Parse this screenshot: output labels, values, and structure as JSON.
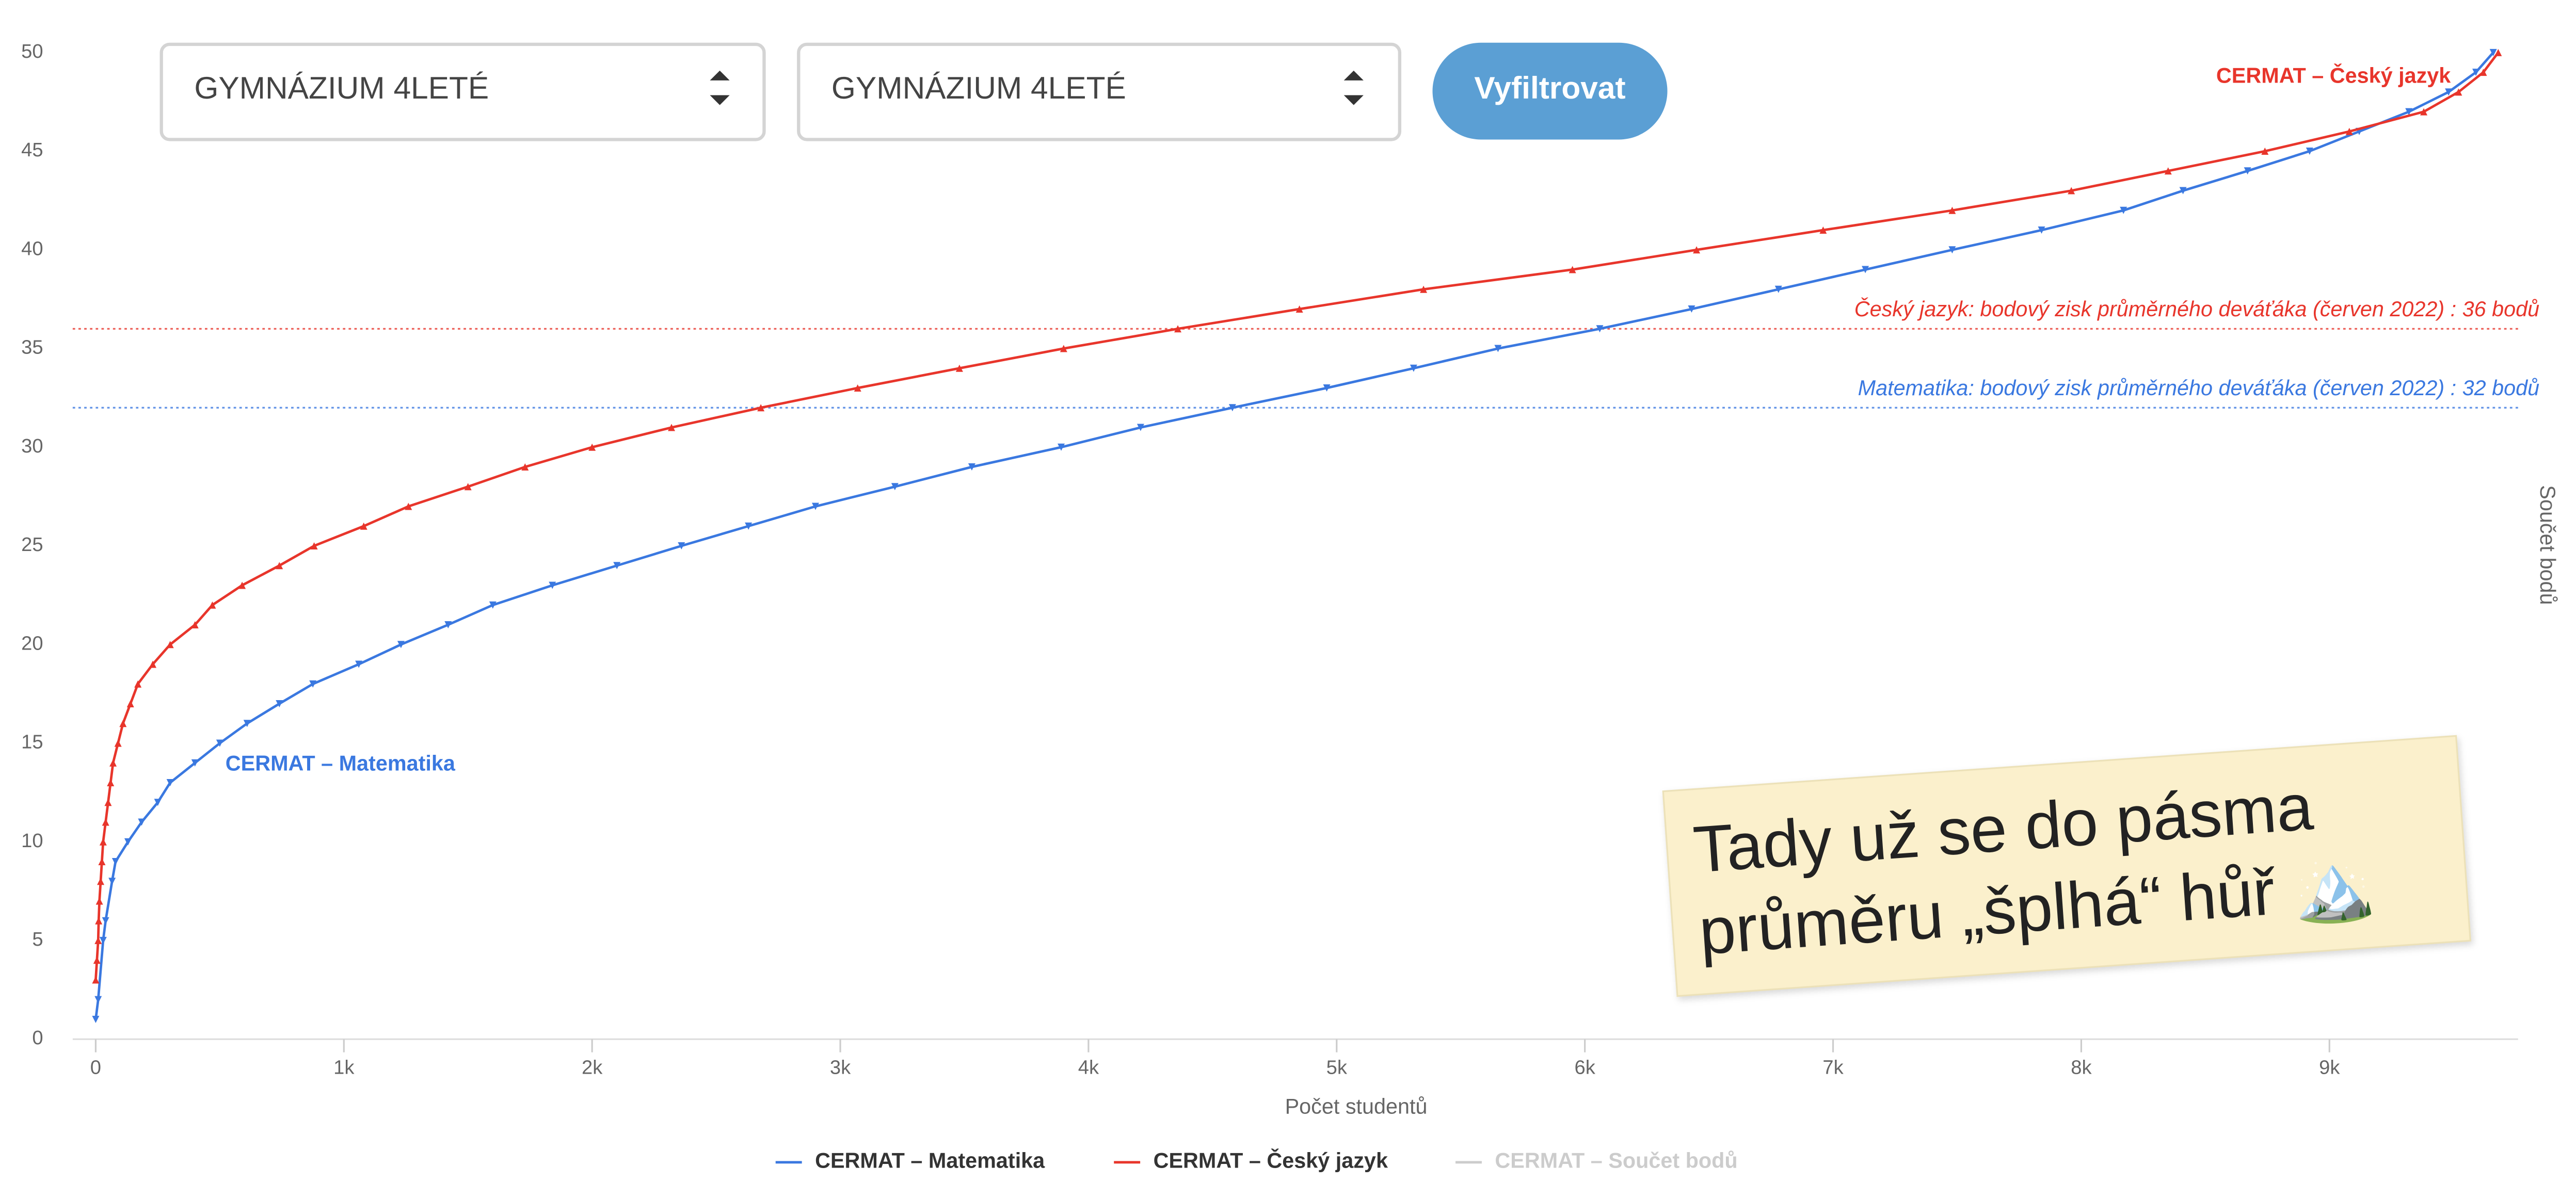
{
  "filters": {
    "select_1": "GYMNÁZIUM 4LETÉ",
    "select_2": "GYMNÁZIUM 4LETÉ",
    "button": "Vyfiltrovat"
  },
  "note": {
    "lines": [
      "Tady už se do pásma",
      "průměru „šplhá“ hůř 🏔️"
    ]
  },
  "chart_data": {
    "type": "line",
    "xlabel": "Počet studentů",
    "ylabel": "Součet bodů",
    "xlim": [
      0,
      9760
    ],
    "ylim": [
      0,
      50
    ],
    "xticks": [
      0,
      {
        "value": 1000,
        "label": "1k"
      },
      {
        "value": 2000,
        "label": "2k"
      },
      {
        "value": 3000,
        "label": "3k"
      },
      {
        "value": 4000,
        "label": "4k"
      },
      {
        "value": 5000,
        "label": "5k"
      },
      {
        "value": 6000,
        "label": "6k"
      },
      {
        "value": 7000,
        "label": "7k"
      },
      {
        "value": 8000,
        "label": "8k"
      },
      {
        "value": 9000,
        "label": "9k"
      }
    ],
    "yticks": [
      0,
      5,
      10,
      15,
      20,
      25,
      30,
      35,
      40,
      45,
      50
    ],
    "reference_lines": [
      {
        "value": 36,
        "color": "#e8352b",
        "label": "Český jazyk: bodový zisk průměrného deváťáka (červen 2022) : 36 bodů"
      },
      {
        "value": 32,
        "color": "#3a78e0",
        "label": "Matematika: bodový zisk průměrného deváťáka (červen 2022) : 32 bodů"
      }
    ],
    "annotations": [
      {
        "text": "CERMAT – Český jazyk",
        "color": "#e8352b"
      },
      {
        "text": "CERMAT – Matematika",
        "color": "#3a78e0"
      }
    ],
    "series": [
      {
        "name": "CERMAT – Matematika",
        "color": "#3a78e0",
        "marker": "down",
        "x": [
          0,
          10,
          30,
          40,
          66,
          80,
          130,
          185,
          250,
          300,
          400,
          500,
          610,
          740,
          875,
          1060,
          1230,
          1420,
          1600,
          1840,
          2100,
          2360,
          2630,
          2900,
          3220,
          3530,
          3890,
          4210,
          4580,
          4960,
          5310,
          5650,
          6060,
          6430,
          6780,
          7130,
          7480,
          7840,
          8170,
          8410,
          8670,
          8920,
          9120,
          9320,
          9480,
          9590,
          9660
        ],
        "values": [
          1,
          2,
          5,
          6,
          8,
          9,
          10,
          11,
          12,
          13,
          14,
          15,
          16,
          17,
          18,
          19,
          20,
          21,
          22,
          23,
          24,
          25,
          26,
          27,
          28,
          29,
          30,
          31,
          32,
          33,
          34,
          35,
          36,
          37,
          38,
          39,
          40,
          41,
          42,
          43,
          44,
          45,
          46,
          47,
          48,
          49,
          50
        ]
      },
      {
        "name": "CERMAT – Český jazyk",
        "color": "#e8352b",
        "marker": "up",
        "x": [
          0,
          5,
          10,
          12,
          15,
          20,
          25,
          30,
          40,
          50,
          60,
          70,
          90,
          110,
          140,
          170,
          230,
          300,
          400,
          470,
          590,
          740,
          880,
          1080,
          1260,
          1500,
          1730,
          2000,
          2320,
          2680,
          3070,
          3480,
          3900,
          4360,
          4850,
          5350,
          5950,
          6450,
          6960,
          7480,
          7960,
          8350,
          8740,
          9080,
          9380,
          9520,
          9620,
          9680
        ],
        "values": [
          3,
          4,
          5,
          6,
          7,
          8,
          9,
          10,
          11,
          12,
          13,
          14,
          15,
          16,
          17,
          18,
          19,
          20,
          21,
          22,
          23,
          24,
          25,
          26,
          27,
          28,
          29,
          30,
          31,
          32,
          33,
          34,
          35,
          36,
          37,
          38,
          39,
          40,
          41,
          42,
          43,
          44,
          45,
          46,
          47,
          48,
          49,
          50
        ]
      },
      {
        "name": "CERMAT – Součet bodů",
        "color": "#cccccc",
        "marker": "none",
        "visible": false,
        "x": [],
        "values": []
      }
    ],
    "legend": "bottom"
  }
}
